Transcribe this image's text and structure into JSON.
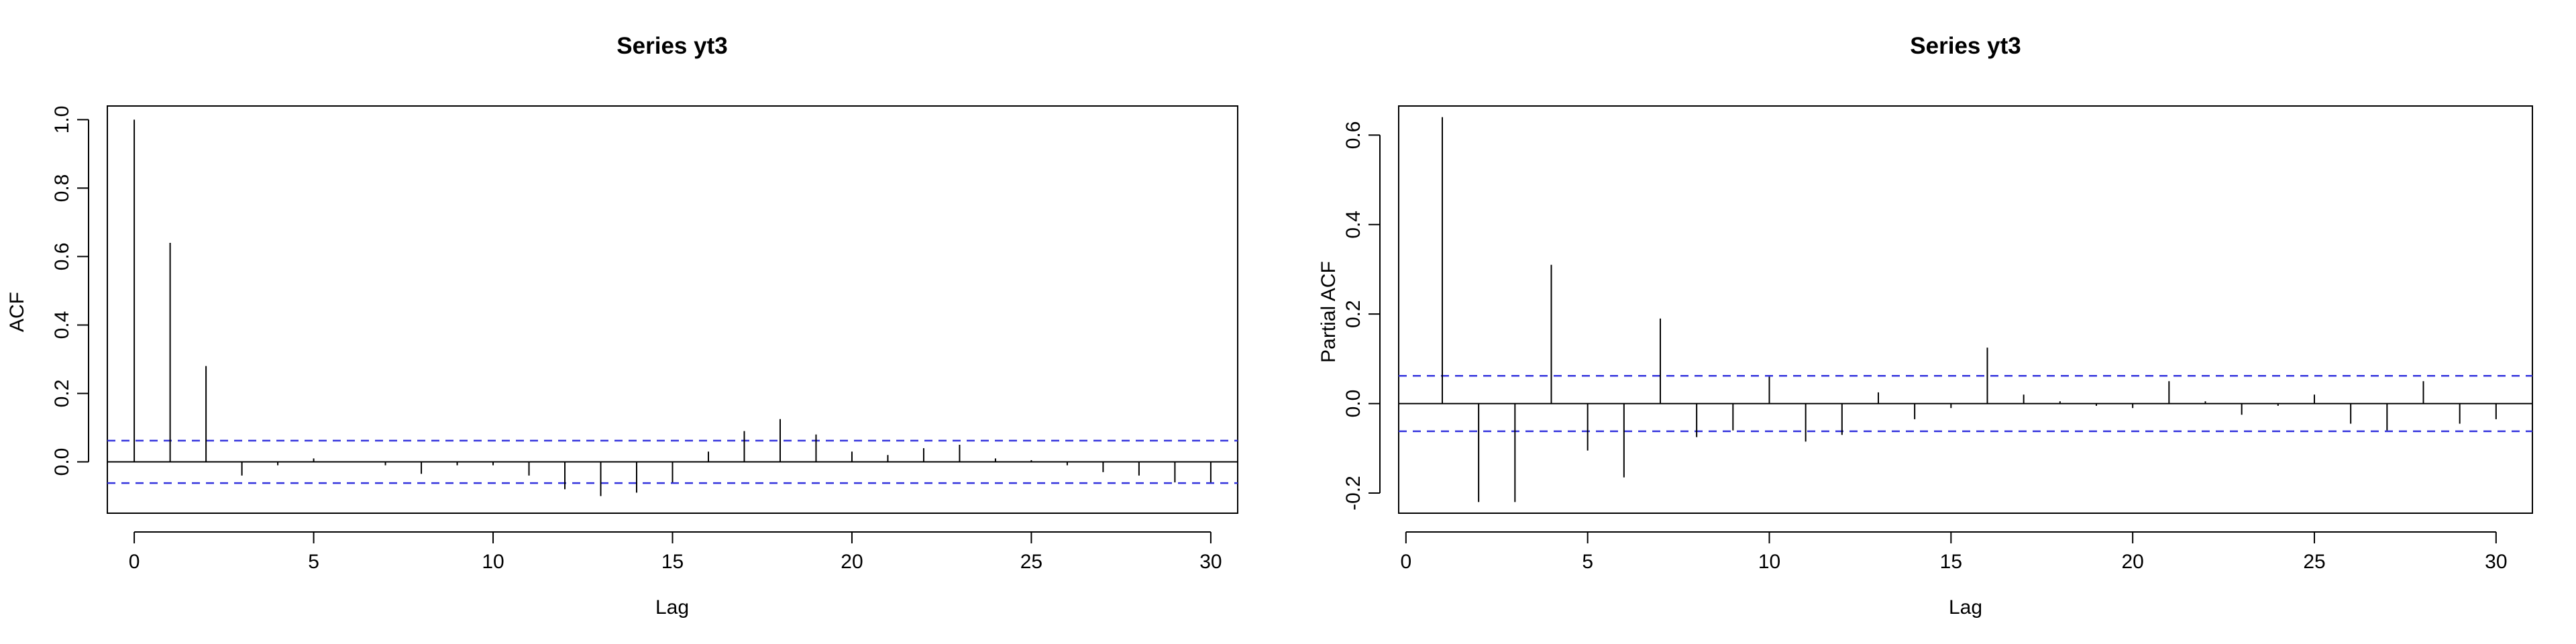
{
  "chart_data": [
    {
      "type": "acf",
      "title": "Series  yt3",
      "xlabel": "Lag",
      "ylabel": "ACF",
      "xlim": [
        -0.75,
        30.75
      ],
      "ylim": [
        -0.15,
        1.04
      ],
      "x_ticks": [
        0,
        5,
        10,
        15,
        20,
        25,
        30
      ],
      "y_ticks": [
        0.0,
        0.2,
        0.4,
        0.6,
        0.8,
        1.0
      ],
      "y_tick_labels": [
        "0.0",
        "0.2",
        "0.4",
        "0.6",
        "0.8",
        "1.0"
      ],
      "confidence_bound": 0.062,
      "confidence_color": "#3333dd",
      "lags": [
        0,
        1,
        2,
        3,
        4,
        5,
        6,
        7,
        8,
        9,
        10,
        11,
        12,
        13,
        14,
        15,
        16,
        17,
        18,
        19,
        20,
        21,
        22,
        23,
        24,
        25,
        26,
        27,
        28,
        29,
        30
      ],
      "values": [
        1.0,
        0.64,
        0.28,
        -0.04,
        -0.01,
        0.01,
        0.0,
        -0.01,
        -0.035,
        -0.01,
        -0.01,
        -0.04,
        -0.08,
        -0.1,
        -0.09,
        -0.06,
        0.03,
        0.09,
        0.125,
        0.08,
        0.03,
        0.02,
        0.04,
        0.05,
        0.01,
        0.005,
        -0.01,
        -0.03,
        -0.04,
        -0.06,
        -0.06
      ]
    },
    {
      "type": "pacf",
      "title": "Series  yt3",
      "xlabel": "Lag",
      "ylabel": "Partial ACF",
      "xlim": [
        -0.2,
        31.0
      ],
      "ylim": [
        -0.245,
        0.665
      ],
      "x_ticks": [
        0,
        5,
        10,
        15,
        20,
        25,
        30
      ],
      "y_ticks": [
        -0.2,
        0.0,
        0.2,
        0.4,
        0.6
      ],
      "y_tick_labels": [
        "-0.2",
        "0.0",
        "0.2",
        "0.4",
        "0.6"
      ],
      "confidence_bound": 0.062,
      "confidence_color": "#3333dd",
      "lags": [
        1,
        2,
        3,
        4,
        5,
        6,
        7,
        8,
        9,
        10,
        11,
        12,
        13,
        14,
        15,
        16,
        17,
        18,
        19,
        20,
        21,
        22,
        23,
        24,
        25,
        26,
        27,
        28,
        29,
        30
      ],
      "values": [
        0.64,
        -0.22,
        -0.22,
        0.31,
        -0.105,
        -0.165,
        0.19,
        -0.075,
        -0.06,
        0.06,
        -0.085,
        -0.07,
        0.025,
        -0.035,
        -0.01,
        0.125,
        0.02,
        0.005,
        -0.005,
        -0.01,
        0.05,
        0.005,
        -0.025,
        -0.005,
        0.02,
        -0.045,
        -0.06,
        0.05,
        -0.045,
        -0.035
      ]
    }
  ]
}
